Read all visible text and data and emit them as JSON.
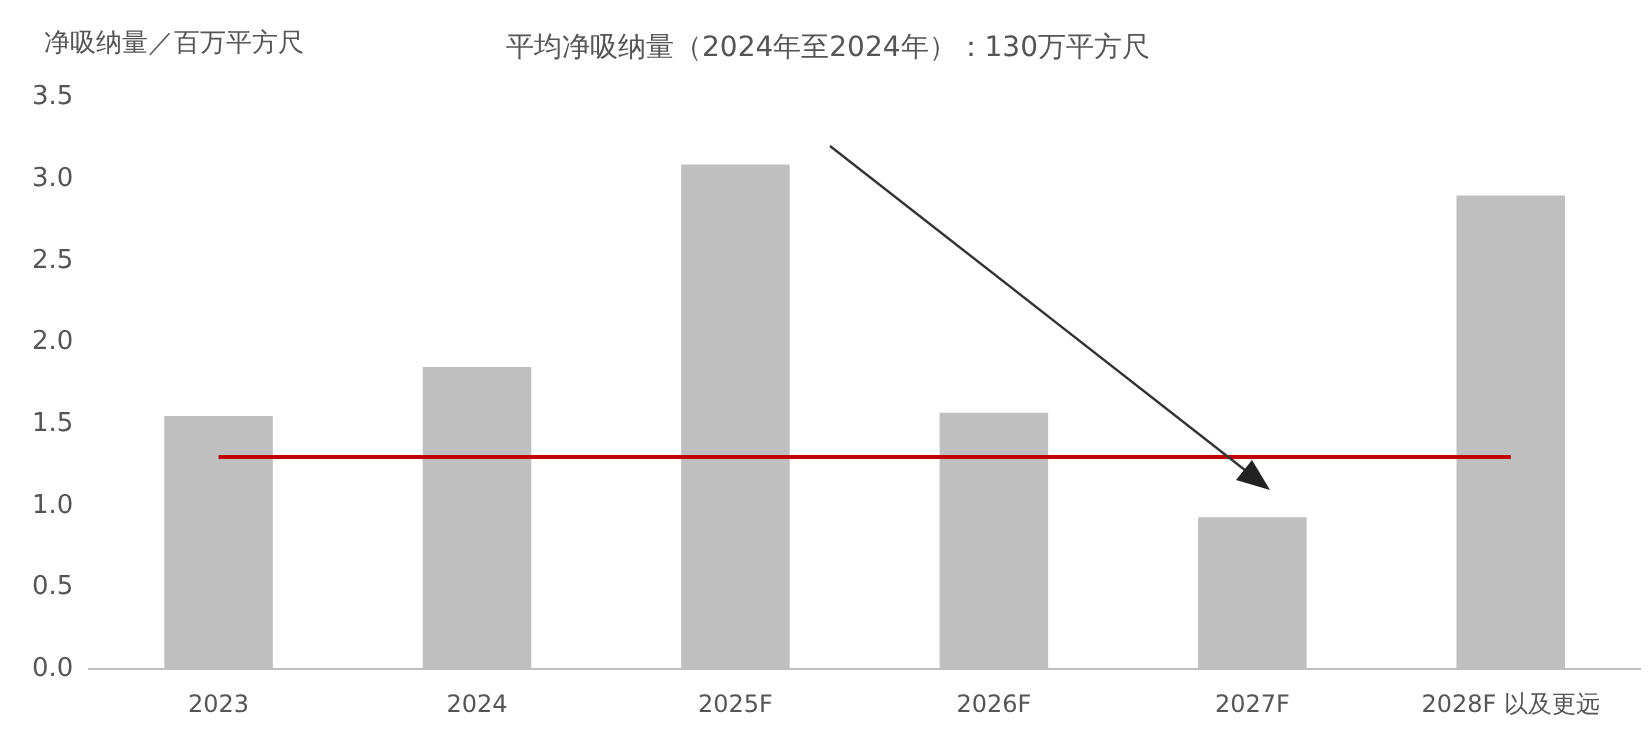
{
  "chart_data": {
    "type": "bar",
    "title": "平均净吸纳量（2024年至2024年）：130万平方尺",
    "ylabel": "净吸纳量／百万平方尺",
    "categories": [
      "2023",
      "2024",
      "2025F",
      "2026F",
      "2027F",
      "2028F 以及更远"
    ],
    "values": [
      1.55,
      1.85,
      3.09,
      1.57,
      0.93,
      2.9
    ],
    "color": "#bfbfbf",
    "ylim": [
      0,
      3.5
    ],
    "yticks": [
      {
        "value": 0,
        "label": "0.0"
      },
      0.5,
      {
        "value": 1,
        "label": "1.0"
      },
      1.5,
      {
        "value": 2,
        "label": "2.0"
      },
      2.5,
      {
        "value": 3,
        "label": "3.0"
      },
      3.5
    ],
    "grid": false,
    "legend": false,
    "ref_lines": [
      {
        "axis": "y",
        "value": 1.3,
        "color": "#c00000"
      }
    ]
  }
}
